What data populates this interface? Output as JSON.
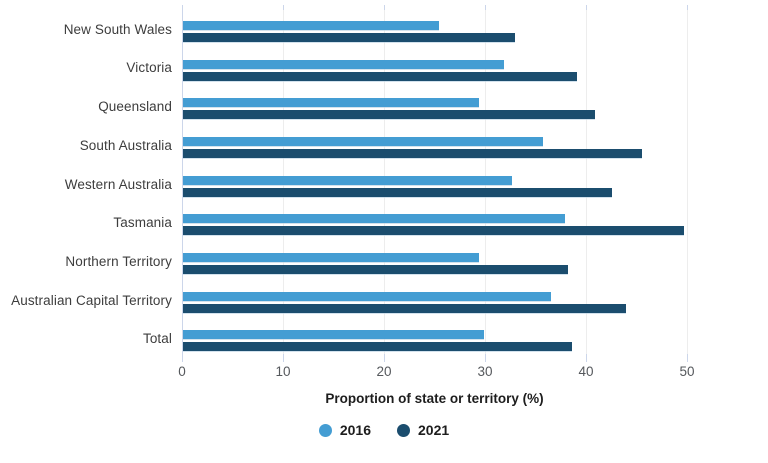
{
  "chart_data": {
    "type": "bar",
    "orientation": "horizontal",
    "title": "",
    "xlabel": "Proportion of state or territory (%)",
    "ylabel": "",
    "categories": [
      "New South Wales",
      "Victoria",
      "Queensland",
      "South Australia",
      "Western Australia",
      "Tasmania",
      "Northern Territory",
      "Australian Capital Territory",
      "Total"
    ],
    "series": [
      {
        "name": "2016",
        "color": "#449dd3",
        "values": [
          25.4,
          31.9,
          29.4,
          35.7,
          32.7,
          37.9,
          29.4,
          36.5,
          29.9
        ]
      },
      {
        "name": "2021",
        "color": "#1b4d6e",
        "values": [
          33.0,
          39.1,
          40.9,
          45.5,
          42.6,
          49.7,
          38.2,
          44.0,
          38.6
        ]
      }
    ],
    "x_ticks": [
      0,
      10,
      20,
      30,
      40,
      50
    ],
    "xlim": [
      0,
      58
    ],
    "grid": "vertical-only",
    "legend_position": "bottom-center"
  },
  "colors": {
    "background": "#ffffff",
    "gridline": "#ededed",
    "axis_rule": "#ccd6ea",
    "tick_label": "#55585c",
    "category_label": "#3d3d3d",
    "title_text": "#1d1d1d",
    "series_2016": "#449dd3",
    "series_2021": "#1b4d6e"
  }
}
